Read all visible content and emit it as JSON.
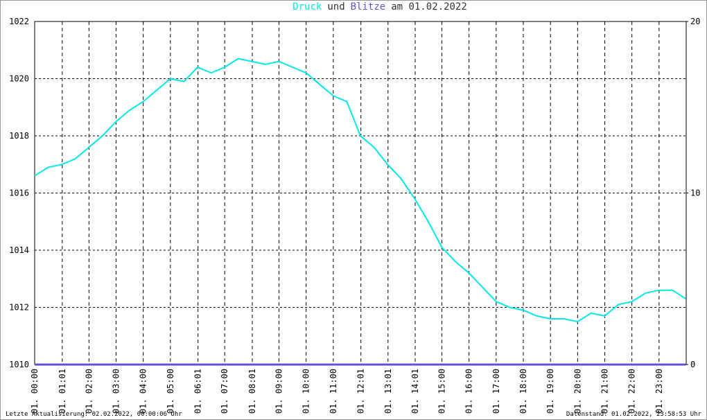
{
  "chart_data": {
    "type": "line",
    "title_and": "und",
    "title_date": "am 01.02.2022",
    "footer_left": "Letzte Aktualisierung: 02.02.2022, 00:00:06 Uhr",
    "footer_right": "Datenstand: 01.02.2022, 23:58:53 Uhr",
    "x": [
      0,
      30,
      60,
      90,
      120,
      150,
      180,
      210,
      240,
      270,
      300,
      330,
      360,
      390,
      420,
      450,
      480,
      510,
      540,
      570,
      600,
      630,
      660,
      690,
      720,
      750,
      780,
      810,
      840,
      870,
      900,
      930,
      960,
      990,
      1020,
      1050,
      1080,
      1110,
      1140,
      1170,
      1200,
      1230,
      1260,
      1290,
      1320,
      1350,
      1380,
      1410,
      1439
    ],
    "xlim": [
      0,
      1440
    ],
    "xticks": [
      {
        "value": 0,
        "label": "01. 00:00"
      },
      {
        "value": 61,
        "label": "01. 01:01"
      },
      {
        "value": 120,
        "label": "01. 02:00"
      },
      {
        "value": 180,
        "label": "01. 03:00"
      },
      {
        "value": 240,
        "label": "01. 04:00"
      },
      {
        "value": 300,
        "label": "01. 05:00"
      },
      {
        "value": 361,
        "label": "01. 06:01"
      },
      {
        "value": 420,
        "label": "01. 07:00"
      },
      {
        "value": 481,
        "label": "01. 08:01"
      },
      {
        "value": 540,
        "label": "01. 09:00"
      },
      {
        "value": 600,
        "label": "01. 10:00"
      },
      {
        "value": 660,
        "label": "01. 11:00"
      },
      {
        "value": 721,
        "label": "01. 12:01"
      },
      {
        "value": 781,
        "label": "01. 13:01"
      },
      {
        "value": 841,
        "label": "01. 14:01"
      },
      {
        "value": 900,
        "label": "01. 15:00"
      },
      {
        "value": 960,
        "label": "01. 16:00"
      },
      {
        "value": 1020,
        "label": "01. 17:00"
      },
      {
        "value": 1080,
        "label": "01. 18:00"
      },
      {
        "value": 1140,
        "label": "01. 19:00"
      },
      {
        "value": 1200,
        "label": "01. 20:00"
      },
      {
        "value": 1260,
        "label": "01. 21:00"
      },
      {
        "value": 1320,
        "label": "01. 22:00"
      },
      {
        "value": 1380,
        "label": "01. 23:00"
      }
    ],
    "ylim": [
      1010,
      1022
    ],
    "yticks": [
      1010,
      1012,
      1014,
      1016,
      1018,
      1020,
      1022
    ],
    "y2lim": [
      0,
      20
    ],
    "y2ticks": [
      0,
      10,
      20
    ],
    "grid": true,
    "series": [
      {
        "name": "Druck",
        "color": "#00e8e8",
        "values": [
          1016.6,
          1016.9,
          1017.0,
          1017.2,
          1017.6,
          1018.0,
          1018.5,
          1018.9,
          1019.2,
          1019.6,
          1020.0,
          1019.9,
          1020.4,
          1020.2,
          1020.4,
          1020.7,
          1020.6,
          1020.5,
          1020.6,
          1020.4,
          1020.2,
          1019.8,
          1019.4,
          1019.2,
          1018.0,
          1017.6,
          1017.0,
          1016.5,
          1015.8,
          1015.0,
          1014.1,
          1013.6,
          1013.2,
          1012.7,
          1012.2,
          1012.0,
          1011.9,
          1011.7,
          1011.6,
          1011.6,
          1011.5,
          1011.8,
          1011.7,
          1012.1,
          1012.2,
          1012.5,
          1012.6,
          1012.6,
          1012.3
        ]
      },
      {
        "name": "Blitze",
        "color": "#6a4fd0",
        "axis": "y2",
        "values": [
          0,
          0,
          0,
          0,
          0,
          0,
          0,
          0,
          0,
          0,
          0,
          0,
          0,
          0,
          0,
          0,
          0,
          0,
          0,
          0,
          0,
          0,
          0,
          0,
          0,
          0,
          0,
          0,
          0,
          0,
          0,
          0,
          0,
          0,
          0,
          0,
          0,
          0,
          0,
          0,
          0,
          0,
          0,
          0,
          0,
          0,
          0,
          0,
          0
        ]
      }
    ]
  }
}
